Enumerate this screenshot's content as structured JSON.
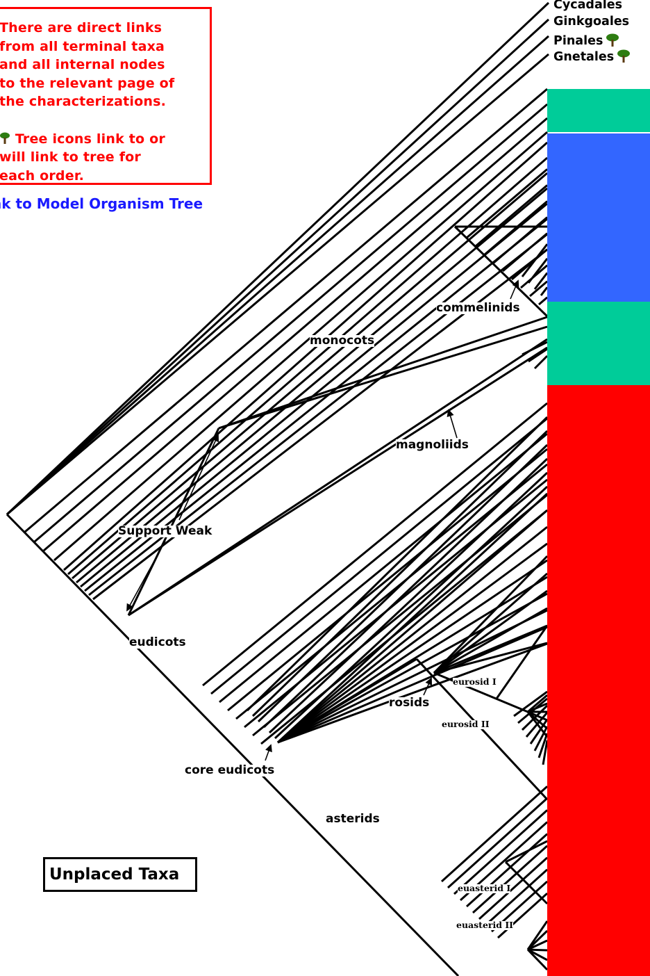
{
  "info_box": {
    "line1": "There are direct links",
    "line2": "from all terminal taxa",
    "line3": "and all internal nodes",
    "line4": "to the relevant page of",
    "line5": "the characterizations.",
    "line6": "Tree icons link to or",
    "line7": "will link to tree for",
    "line8": "each order."
  },
  "model_link": "nk to Model Organism Tree",
  "unplaced_taxa": "Unplaced Taxa",
  "taxa": [
    {
      "label": "Cycadales",
      "tree_icon": false
    },
    {
      "label": "Ginkgoales",
      "tree_icon": false
    },
    {
      "label": "Pinales",
      "tree_icon": true
    },
    {
      "label": "Gnetales",
      "tree_icon": true
    }
  ],
  "node_labels": {
    "commelinids": "commelinids",
    "monocots": "monocots",
    "magnoliids": "magnoliids",
    "support_weak": "Support Weak",
    "eudicots": "eudicots",
    "rosids": "rosids",
    "eurosid_1": "eurosid I",
    "eurosid_2": "eurosid II",
    "core_eudicots": "core eudicots",
    "asterids": "asterids",
    "euasterid_1": "euasterid I",
    "euasterid_2": "euasterid II"
  },
  "colors": {
    "band_1": "#00cc99",
    "band_2": "#3366ff",
    "band_3": "#00cc99",
    "band_4": "#ff0000",
    "info_text": "#ff0000",
    "link": "#1a1aff",
    "tree_icon": "#2e7d12"
  },
  "icons": [
    "tree-icon",
    "arrow-icon"
  ]
}
